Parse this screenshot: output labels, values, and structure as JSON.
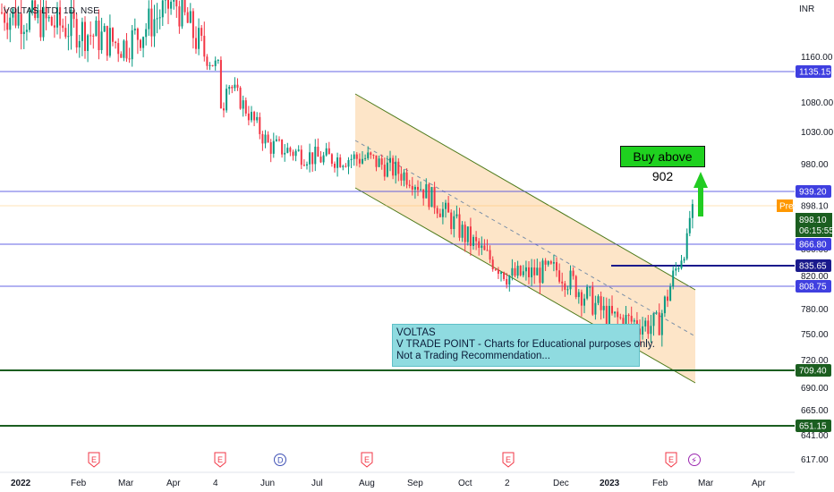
{
  "header": {
    "symbol": "VOLTAS LTD, 1D, NSE",
    "currency": "INR"
  },
  "price_axis": {
    "ticks": [
      "1160.00",
      "1080.00",
      "1030.00",
      "980.00",
      "860.00",
      "820.00",
      "780.00",
      "750.00",
      "720.00",
      "690.00",
      "665.00",
      "641.00",
      "617.00"
    ],
    "tick_values": [
      1160,
      1080,
      1030,
      980,
      860,
      820,
      780,
      750,
      720,
      690,
      665,
      641,
      617
    ]
  },
  "time_axis": {
    "labels": [
      "2022",
      "Feb",
      "Mar",
      "Apr",
      "4",
      "Jun",
      "Jul",
      "Aug",
      "Sep",
      "Oct",
      "2",
      "Dec",
      "2023",
      "Feb",
      "Mar",
      "Apr"
    ]
  },
  "colors": {
    "up": "#089981",
    "down": "#f23645",
    "blue_line": "#3f3fe0",
    "navy_line": "#1a1a8c",
    "green_line": "#1b5e20",
    "channel_fill": "#fde5c8",
    "channel_border": "#4d7a1a",
    "pre_tag": "#ff9800",
    "last_tag": "#1b5e20"
  },
  "chart_data": {
    "type": "candlestick",
    "title": "VOLTAS LTD, 1D, NSE",
    "period": "2022-01 to 2023-02",
    "ylim": [
      605,
      1250
    ],
    "grid": false,
    "approximate_closes": [
      {
        "date": "2022-01",
        "close": 1200
      },
      {
        "date": "2022-03",
        "close": 1170
      },
      {
        "date": "2022-04",
        "close": 1210
      },
      {
        "date": "2022-05",
        "close": 1050
      },
      {
        "date": "2022-06",
        "close": 1010
      },
      {
        "date": "2022-07",
        "close": 990
      },
      {
        "date": "2022-08",
        "close": 980
      },
      {
        "date": "2022-09",
        "close": 960
      },
      {
        "date": "2022-10",
        "close": 880
      },
      {
        "date": "2022-11",
        "close": 820
      },
      {
        "date": "2022-12",
        "close": 830
      },
      {
        "date": "2023-01",
        "close": 760
      },
      {
        "date": "2023-02",
        "close": 898.1
      }
    ],
    "horizontal_levels": [
      {
        "value": 1135.15,
        "label": "1135.15",
        "style": "blue"
      },
      {
        "value": 939.2,
        "label": "939.20",
        "style": "blue"
      },
      {
        "value": 866.8,
        "label": "866.80",
        "style": "blue"
      },
      {
        "value": 835.65,
        "label": "835.65",
        "style": "navy"
      },
      {
        "value": 808.75,
        "label": "808.75",
        "style": "blue"
      },
      {
        "value": 709.4,
        "label": "709.40",
        "style": "green"
      },
      {
        "value": 651.15,
        "label": "651.15",
        "style": "green"
      }
    ],
    "last_price": {
      "value": "898.10",
      "countdown": "06:15:55"
    },
    "pre_market": {
      "label": "Pre",
      "value": "898.10"
    },
    "event_markers": [
      "E",
      "E",
      "D",
      "E",
      "E",
      "E",
      "⚡"
    ]
  },
  "annotations": {
    "note_lines": [
      "VOLTAS",
      "V TRADE POINT - Charts for Educational purposes only.",
      "Not a Trading Recommendation..."
    ],
    "buy_label": "Buy above 902"
  }
}
